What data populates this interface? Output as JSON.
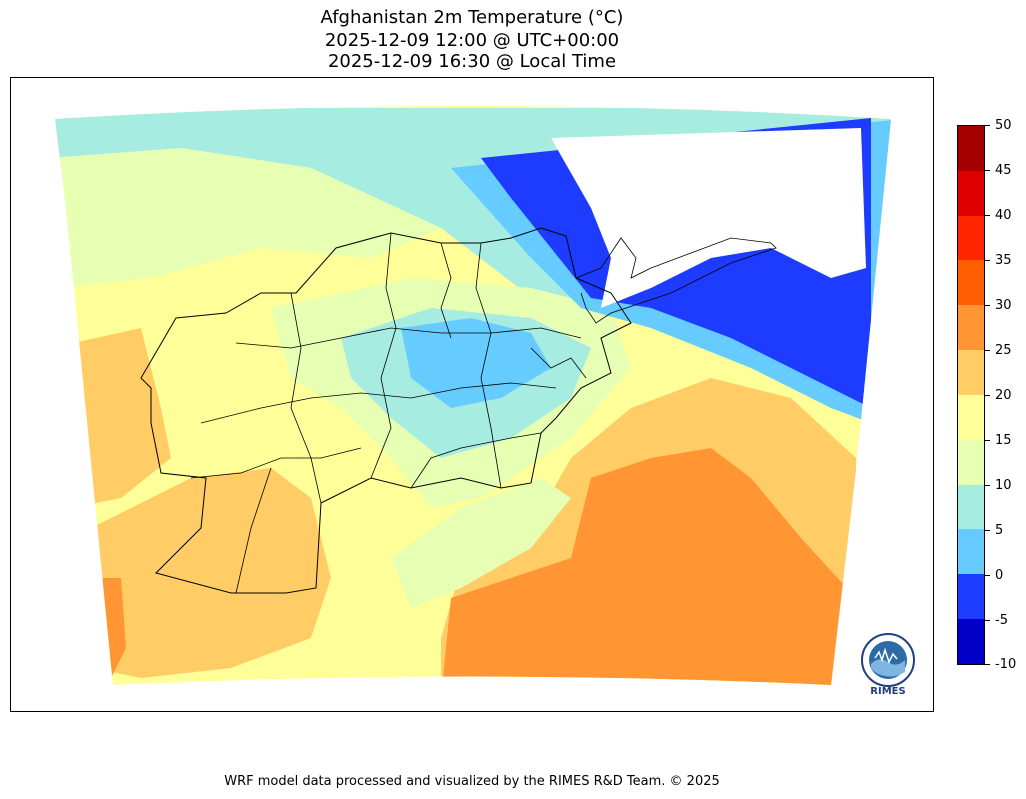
{
  "title": {
    "line1": "Afghanistan 2m Temperature (°C)",
    "line2": "2025-12-09 12:00 @ UTC+00:00",
    "line3": "2025-12-09 16:30 @ Local Time"
  },
  "map": {
    "domain_shape": "conic-fan",
    "country": "Afghanistan",
    "province_borders": true,
    "warm_region": "south-east plains 25-35",
    "cold_region": "north-east mountains below 0"
  },
  "colorbar": {
    "ticks": [
      "50",
      "45",
      "40",
      "35",
      "30",
      "25",
      "20",
      "15",
      "10",
      "5",
      "0",
      "-5",
      "-10"
    ],
    "colors_top_to_bottom": [
      "#a50000",
      "#dd0000",
      "#ff2600",
      "#ff5f00",
      "#ff9633",
      "#ffcc66",
      "#ffff99",
      "#e6ffb3",
      "#a6ece0",
      "#66ccff",
      "#1e3cff",
      "#0000c8"
    ]
  },
  "logo": {
    "text": "RIMES"
  },
  "footer": "WRF model data processed and visualized by the RIMES R&D Team. © 2025"
}
